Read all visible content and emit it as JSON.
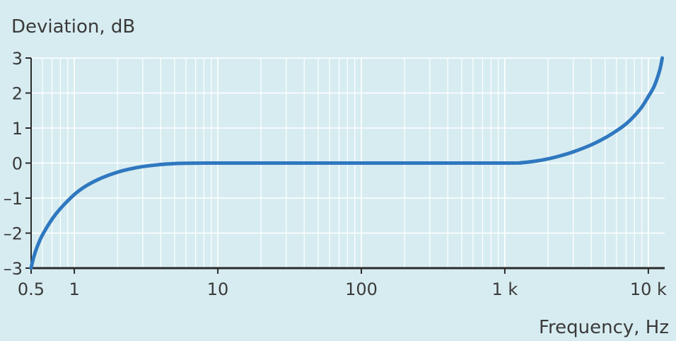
{
  "colors": {
    "background": "#d7ecf0",
    "grid": "#ffffff",
    "axis": "#2b2b2b",
    "curve": "#2f78c0",
    "text": "#3a3a3a"
  },
  "chart_data": {
    "type": "line",
    "title": "",
    "ylabel": "Deviation, dB",
    "xlabel": "Frequency, Hz",
    "x_scale": "log",
    "xlim": [
      0.5,
      13000
    ],
    "ylim": [
      -3,
      3
    ],
    "grid": true,
    "x_ticks": [
      {
        "value": 0.5,
        "label": "0.5"
      },
      {
        "value": 1,
        "label": "1"
      },
      {
        "value": 10,
        "label": "10"
      },
      {
        "value": 100,
        "label": "100"
      },
      {
        "value": 1000,
        "label": "1 k"
      },
      {
        "value": 10000,
        "label": "10 k"
      }
    ],
    "y_ticks": [
      {
        "value": 3,
        "label": "3"
      },
      {
        "value": 2,
        "label": "2"
      },
      {
        "value": 1,
        "label": "1"
      },
      {
        "value": 0,
        "label": "0"
      },
      {
        "value": -1,
        "label": "–1"
      },
      {
        "value": -2,
        "label": "–2"
      },
      {
        "value": -3,
        "label": "–3"
      }
    ],
    "series": [
      {
        "x": [
          0.5,
          0.52,
          0.55,
          0.6,
          0.7,
          0.8,
          1,
          1.2,
          1.5,
          2,
          2.5,
          3,
          4,
          5,
          6,
          8,
          10,
          100,
          1000,
          1300,
          1600,
          2000,
          2500,
          3000,
          4000,
          5000,
          6000,
          7000,
          8000,
          9000,
          10000,
          11000,
          12000,
          12500
        ],
        "y": [
          -3,
          -2.7,
          -2.4,
          -2.05,
          -1.6,
          -1.3,
          -0.9,
          -0.66,
          -0.45,
          -0.26,
          -0.16,
          -0.1,
          -0.04,
          -0.015,
          -0.005,
          0,
          0,
          0,
          0,
          0.01,
          0.05,
          0.12,
          0.22,
          0.32,
          0.52,
          0.72,
          0.92,
          1.12,
          1.35,
          1.6,
          1.9,
          2.2,
          2.65,
          3.0
        ]
      }
    ]
  }
}
